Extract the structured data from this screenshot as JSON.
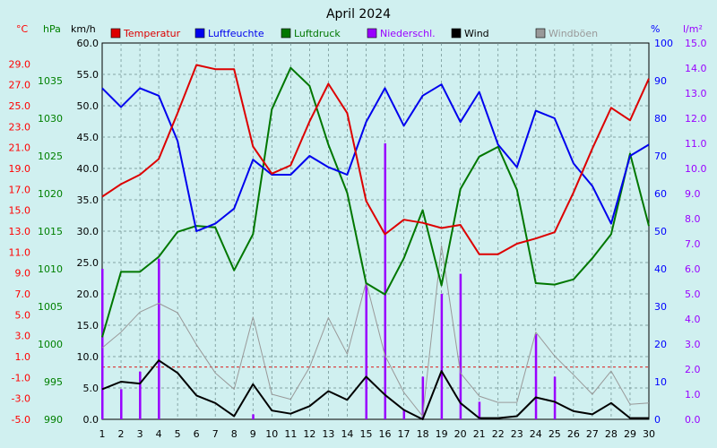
{
  "chart_data": {
    "type": "line",
    "title": "April 2024",
    "x": [
      1,
      2,
      3,
      4,
      5,
      6,
      7,
      8,
      9,
      10,
      11,
      12,
      13,
      14,
      15,
      16,
      17,
      18,
      19,
      20,
      21,
      22,
      23,
      24,
      25,
      26,
      27,
      28,
      29,
      30
    ],
    "axes": {
      "temp": {
        "unit": "°C",
        "ticks": [
          29.0,
          27.0,
          25.0,
          23.0,
          21.0,
          19.0,
          17.0,
          15.0,
          13.0,
          11.0,
          9.0,
          7.0,
          5.0,
          3.0,
          1.0,
          -1.0,
          -3.0,
          -5.0
        ],
        "color": "#ff0000",
        "range": [
          -5,
          31
        ]
      },
      "pressure": {
        "unit": "hPa",
        "ticks": [
          1035,
          1030,
          1025,
          1020,
          1015,
          1010,
          1005,
          1000,
          995,
          990
        ],
        "color": "#008000",
        "range": [
          990,
          1040
        ]
      },
      "wind": {
        "unit": "km/h",
        "ticks": [
          "60.0",
          "55.0",
          "50.0",
          "45.0",
          "40.0",
          "35.0",
          "30.0",
          "25.0",
          "20.0",
          "15.0",
          "10.0",
          "5.0",
          "0.0"
        ],
        "color": "#000000",
        "range": [
          0,
          60
        ]
      },
      "humidity": {
        "unit": "%",
        "ticks": [
          100,
          90,
          80,
          70,
          60,
          50,
          40,
          30,
          20,
          10,
          0
        ],
        "color": "#0000ff",
        "range": [
          0,
          100
        ]
      },
      "precip": {
        "unit": "l/m²",
        "ticks": [
          "15.0",
          "14.0",
          "13.0",
          "12.0",
          "11.0",
          "10.0",
          "9.0",
          "8.0",
          "7.0",
          "6.0",
          "5.0",
          "4.0",
          "3.0",
          "2.0",
          "1.0",
          "0.0"
        ],
        "color": "#9900ff",
        "range": [
          0,
          15
        ]
      }
    },
    "series": [
      {
        "name": "Temperatur",
        "axis": "temp",
        "color": "#dd0000",
        "kind": "line",
        "values": [
          16.3,
          17.5,
          18.4,
          19.9,
          24.3,
          28.9,
          28.5,
          28.5,
          21.1,
          18.5,
          19.3,
          23.5,
          27.1,
          24.3,
          15.9,
          12.7,
          14.1,
          13.8,
          13.3,
          13.6,
          10.8,
          10.8,
          11.8,
          12.3,
          12.9,
          16.7,
          20.9,
          24.8,
          23.6,
          27.6
        ]
      },
      {
        "name": "Luftfeuchte",
        "axis": "humidity",
        "color": "#0000ee",
        "kind": "line",
        "values": [
          88,
          83,
          88,
          86,
          74,
          50,
          52,
          56,
          69,
          65,
          65,
          70,
          67,
          65,
          79,
          88,
          78,
          86,
          89,
          79,
          87,
          73,
          67,
          82,
          80,
          68,
          62,
          52,
          70,
          73
        ]
      },
      {
        "name": "Luftdruck",
        "axis": "pressure",
        "color": "#007700",
        "kind": "line",
        "values": [
          1000.9,
          1009.6,
          1009.6,
          1011.6,
          1014.9,
          1015.7,
          1015.5,
          1009.8,
          1014.6,
          1031.2,
          1036.7,
          1034.3,
          1026.5,
          1020.1,
          1008.1,
          1006.6,
          1011.4,
          1017.8,
          1007.8,
          1020.6,
          1024.9,
          1026.2,
          1020.5,
          1008.1,
          1007.9,
          1008.6,
          1011.4,
          1014.6,
          1025.3,
          1015.7
        ]
      },
      {
        "name": "Niederschl.",
        "axis": "precip",
        "color": "#9900ff",
        "kind": "bar",
        "values": [
          6.0,
          1.2,
          1.9,
          6.4,
          0,
          0,
          0,
          0,
          0.2,
          0,
          0,
          0,
          0,
          0,
          5.4,
          11.0,
          0.4,
          1.7,
          5.0,
          5.8,
          0.7,
          0,
          0,
          3.4,
          1.7,
          0,
          0,
          0,
          0,
          0
        ]
      },
      {
        "name": "Wind",
        "axis": "wind",
        "color": "#000000",
        "kind": "line",
        "values": [
          4.8,
          6.0,
          5.7,
          9.4,
          7.4,
          3.8,
          2.6,
          0.5,
          5.6,
          1.4,
          0.9,
          2.1,
          4.5,
          3.1,
          6.8,
          3.9,
          1.5,
          0.0,
          7.7,
          2.6,
          0.2,
          0.2,
          0.5,
          3.5,
          2.8,
          1.3,
          0.8,
          2.6,
          0.2,
          0.2
        ]
      },
      {
        "name": "Windböen",
        "axis": "wind",
        "color": "#999999",
        "kind": "line",
        "values": [
          11.4,
          13.9,
          17.1,
          18.5,
          17.0,
          11.9,
          7.4,
          4.8,
          16.3,
          4.0,
          3.2,
          8.3,
          16.2,
          10.4,
          21.9,
          10.2,
          4.3,
          0.5,
          27.7,
          7.4,
          3.7,
          2.7,
          2.7,
          13.9,
          10.1,
          7.1,
          4.0,
          7.7,
          2.4,
          2.6
        ]
      }
    ],
    "legend": [
      {
        "label": "Temperatur",
        "color": "#dd0000"
      },
      {
        "label": "Luftfeuchte",
        "color": "#0000ee"
      },
      {
        "label": "Luftdruck",
        "color": "#007700"
      },
      {
        "label": "Niederschl.",
        "color": "#9900ff"
      },
      {
        "label": "Wind",
        "color": "#000000"
      },
      {
        "label": "Windböen",
        "color": "#999999"
      }
    ],
    "legend_position": "top",
    "grid": true,
    "freezing_line": 0
  }
}
